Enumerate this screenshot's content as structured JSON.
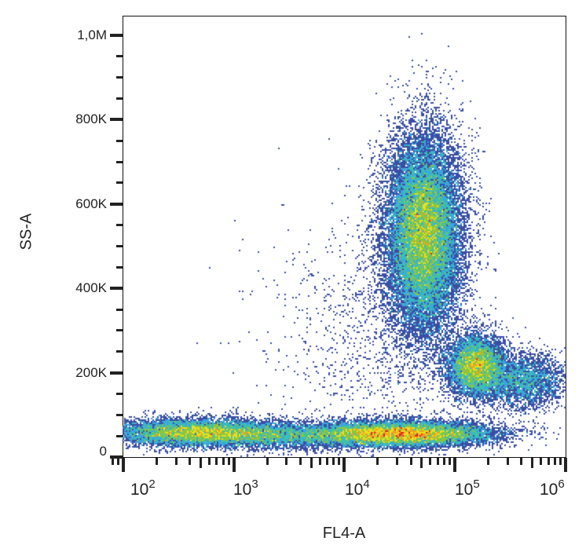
{
  "chart_data": {
    "type": "scatter",
    "subtype": "flow-cytometry-density-dot-plot",
    "title": "",
    "xlabel": "FL4-A",
    "ylabel": "SS-A",
    "x_scale": "log",
    "y_scale": "linear",
    "xlim": [
      63,
      1000000
    ],
    "ylim": [
      0,
      1050000
    ],
    "x_ticks": [
      {
        "value": 100,
        "label_base": "10",
        "label_exp": "2"
      },
      {
        "value": 1000,
        "label_base": "10",
        "label_exp": "3"
      },
      {
        "value": 10000,
        "label_base": "10",
        "label_exp": "4"
      },
      {
        "value": 100000,
        "label_base": "10",
        "label_exp": "5"
      },
      {
        "value": 1000000,
        "label_base": "10",
        "label_exp": "6"
      }
    ],
    "y_ticks": [
      {
        "value": 0,
        "label": "0"
      },
      {
        "value": 200000,
        "label": "200K"
      },
      {
        "value": 400000,
        "label": "400K"
      },
      {
        "value": 600000,
        "label": "600K"
      },
      {
        "value": 800000,
        "label": "800K"
      },
      {
        "value": 1000000,
        "label": "1,0M"
      }
    ],
    "grid": false,
    "legend": null,
    "color_scale": [
      "#3a4fa3",
      "#3aa6dc",
      "#3cc0b0",
      "#8cc63f",
      "#e8e020",
      "#f5a020",
      "#e8251e"
    ],
    "populations": [
      {
        "name": "low-SS FL4-dim population",
        "x_center": 460,
        "y_center": 58000,
        "x_spread_decades": 0.42,
        "y_spread": 16000,
        "relative_count": 0.16,
        "peak_color": "#b8d838"
      },
      {
        "name": "low-SS FL4-intermediate population",
        "x_center": 32000,
        "y_center": 55000,
        "x_spread_decades": 0.42,
        "y_spread": 15000,
        "relative_count": 0.22,
        "peak_color": "#e8251e"
      },
      {
        "name": "high-SS FL4-bright population",
        "x_center": 52000,
        "y_center": 530000,
        "x_spread_decades": 0.17,
        "y_spread": 115000,
        "relative_count": 0.42,
        "peak_color": "#e8251e"
      },
      {
        "name": "mid-SS FL4-brightest population",
        "x_center": 155000,
        "y_center": 215000,
        "x_spread_decades": 0.13,
        "y_spread": 36000,
        "relative_count": 0.12,
        "peak_color": "#8cc63f"
      },
      {
        "name": "mid-SS tail toward high FL4",
        "x_center": 420000,
        "y_center": 180000,
        "x_spread_decades": 0.18,
        "y_spread": 32000,
        "relative_count": 0.05,
        "peak_color": "#3a4fa3"
      },
      {
        "name": "bridge between low-SS populations",
        "x_center": 3000,
        "y_center": 50000,
        "x_spread_decades": 0.45,
        "y_spread": 15000,
        "relative_count": 0.06,
        "peak_color": "#3a4fa3"
      },
      {
        "name": "sparse background events",
        "x_center": 20000,
        "y_center": 300000,
        "x_spread_decades": 0.5,
        "y_spread": 150000,
        "relative_count": 0.02,
        "peak_color": "#3a4fa3"
      }
    ]
  }
}
